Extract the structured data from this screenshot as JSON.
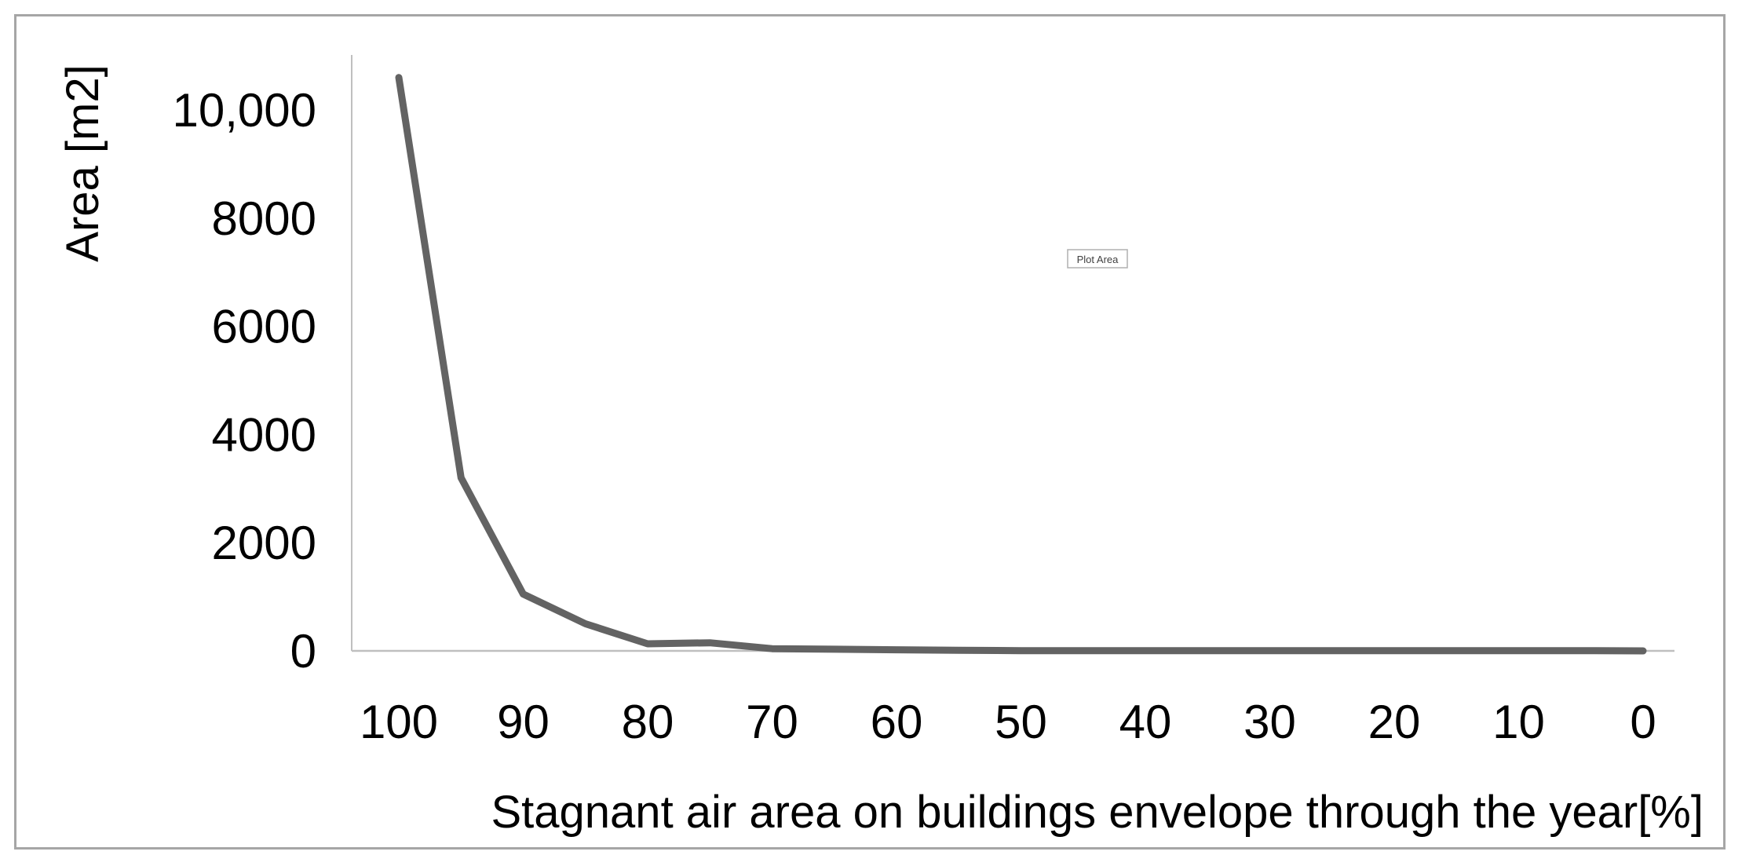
{
  "chart_data": {
    "type": "line",
    "title": "",
    "xlabel": "Stagnant air area on buildings envelope through the year[%]",
    "ylabel": "Area [m2]",
    "x_tick_labels": [
      "100",
      "90",
      "80",
      "70",
      "60",
      "50",
      "40",
      "30",
      "20",
      "10",
      "0"
    ],
    "y_tick_labels": [
      "0",
      "2000",
      "4000",
      "6000",
      "8000",
      "10,000"
    ],
    "ylim": [
      0,
      10000
    ],
    "x_reversed": true,
    "xlim": [
      100,
      0
    ],
    "grid": false,
    "legend": "none",
    "annotation": "Plot Area",
    "line_color": "#636363",
    "series": [
      {
        "x": [
          100,
          95,
          90,
          85,
          80,
          75,
          70,
          65,
          60,
          55,
          50,
          45,
          40,
          35,
          30,
          25,
          20,
          15,
          10,
          5,
          0
        ],
        "values": [
          10600,
          3200,
          1050,
          500,
          130,
          150,
          40,
          30,
          20,
          10,
          5,
          5,
          5,
          5,
          5,
          5,
          5,
          5,
          5,
          5,
          0
        ]
      }
    ]
  }
}
